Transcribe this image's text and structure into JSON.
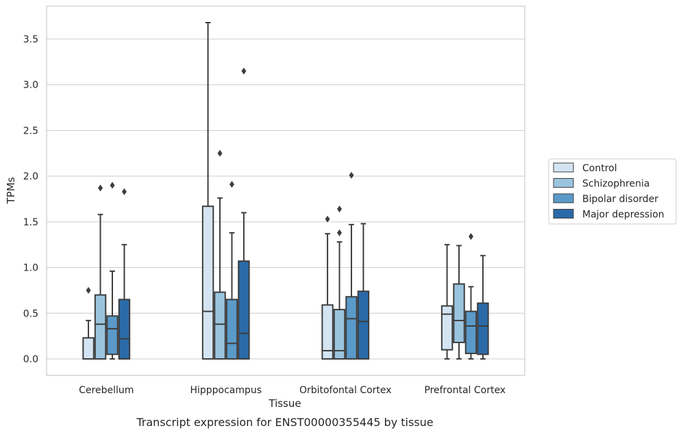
{
  "chart_data": {
    "type": "box",
    "caption": "Transcript expression for ENST00000355445 by tissue",
    "xlabel": "Tissue",
    "ylabel": "TPMs",
    "ylim": [
      -0.18,
      3.86
    ],
    "yticks": [
      "0.0",
      "0.5",
      "1.0",
      "1.5",
      "2.0",
      "2.5",
      "3.0",
      "3.5"
    ],
    "grid": "horizontal",
    "legend_position": "right",
    "categories": [
      "Cerebellum",
      "Hipppocampus",
      "Orbitofontal Cortex",
      "Prefrontal Cortex"
    ],
    "series": [
      {
        "name": "Control",
        "color": "#d4e4f2",
        "boxes": [
          {
            "whisker_low": 0.0,
            "q1": 0.0,
            "median": 0.0,
            "q3": 0.23,
            "whisker_high": 0.42,
            "outliers": [
              0.75
            ]
          },
          {
            "whisker_low": 0.0,
            "q1": 0.0,
            "median": 0.52,
            "q3": 1.67,
            "whisker_high": 3.68,
            "outliers": []
          },
          {
            "whisker_low": 0.0,
            "q1": 0.0,
            "median": 0.09,
            "q3": 0.59,
            "whisker_high": 1.37,
            "outliers": [
              1.53
            ]
          },
          {
            "whisker_low": 0.0,
            "q1": 0.1,
            "median": 0.49,
            "q3": 0.58,
            "whisker_high": 1.25,
            "outliers": []
          }
        ]
      },
      {
        "name": "Schizophrenia",
        "color": "#9ac4de",
        "boxes": [
          {
            "whisker_low": 0.0,
            "q1": 0.0,
            "median": 0.38,
            "q3": 0.7,
            "whisker_high": 1.58,
            "outliers": [
              1.87
            ]
          },
          {
            "whisker_low": 0.0,
            "q1": 0.0,
            "median": 0.38,
            "q3": 0.73,
            "whisker_high": 1.76,
            "outliers": [
              2.25
            ]
          },
          {
            "whisker_low": 0.0,
            "q1": 0.0,
            "median": 0.09,
            "q3": 0.54,
            "whisker_high": 1.28,
            "outliers": [
              1.38,
              1.64
            ]
          },
          {
            "whisker_low": 0.0,
            "q1": 0.18,
            "median": 0.42,
            "q3": 0.82,
            "whisker_high": 1.24,
            "outliers": []
          }
        ]
      },
      {
        "name": "Bipolar disorder",
        "color": "#5a9ac8",
        "boxes": [
          {
            "whisker_low": 0.0,
            "q1": 0.05,
            "median": 0.33,
            "q3": 0.47,
            "whisker_high": 0.96,
            "outliers": [
              1.9
            ]
          },
          {
            "whisker_low": 0.0,
            "q1": 0.0,
            "median": 0.17,
            "q3": 0.65,
            "whisker_high": 1.38,
            "outliers": [
              1.91
            ]
          },
          {
            "whisker_low": 0.0,
            "q1": 0.0,
            "median": 0.44,
            "q3": 0.68,
            "whisker_high": 1.47,
            "outliers": [
              2.01
            ]
          },
          {
            "whisker_low": 0.0,
            "q1": 0.06,
            "median": 0.36,
            "q3": 0.52,
            "whisker_high": 0.79,
            "outliers": [
              1.34
            ]
          }
        ]
      },
      {
        "name": "Major depression",
        "color": "#2a6aa8",
        "boxes": [
          {
            "whisker_low": 0.0,
            "q1": 0.0,
            "median": 0.22,
            "q3": 0.65,
            "whisker_high": 1.25,
            "outliers": [
              1.83
            ]
          },
          {
            "whisker_low": 0.0,
            "q1": 0.0,
            "median": 0.28,
            "q3": 1.07,
            "whisker_high": 1.6,
            "outliers": [
              3.15
            ]
          },
          {
            "whisker_low": 0.0,
            "q1": 0.0,
            "median": 0.41,
            "q3": 0.74,
            "whisker_high": 1.48,
            "outliers": []
          },
          {
            "whisker_low": 0.0,
            "q1": 0.05,
            "median": 0.36,
            "q3": 0.61,
            "whisker_high": 1.13,
            "outliers": []
          }
        ]
      }
    ]
  }
}
